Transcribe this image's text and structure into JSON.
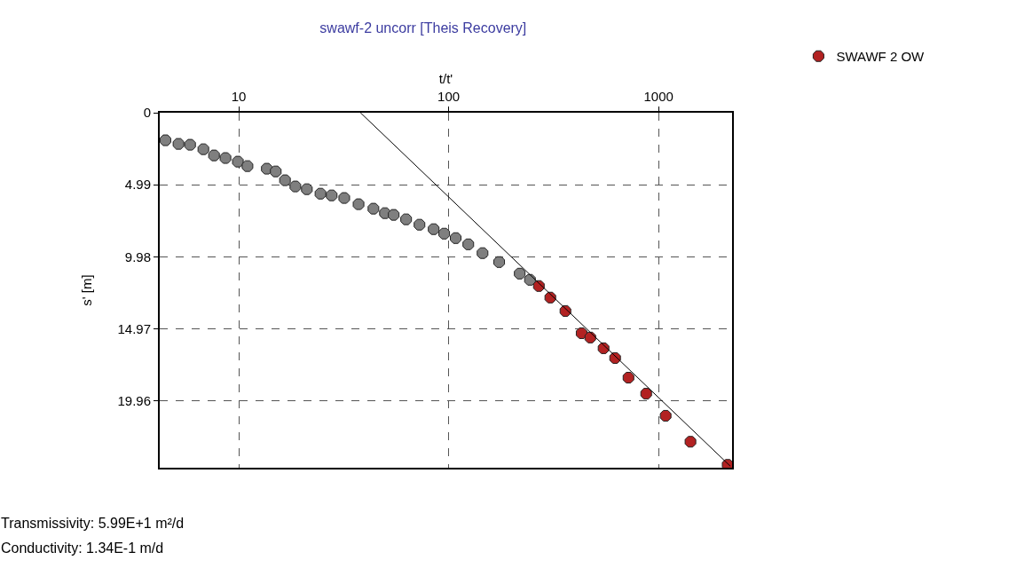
{
  "chart_data": {
    "type": "scatter",
    "title": "swawf-2 uncorr [Theis Recovery]",
    "xlabel": "t/t'",
    "ylabel": "s' [m]",
    "log": "x",
    "xlim": [
      4.2,
      2240
    ],
    "xticks": [
      10,
      100,
      1000
    ],
    "ylim": [
      24.6,
      0
    ],
    "yticks": [
      0,
      4.99,
      9.98,
      14.97,
      19.96
    ],
    "grid": true,
    "legend": "top right",
    "series": [
      {
        "color": "#7f7f7f",
        "marker": "circle",
        "x": [
          4.47,
          5.16,
          5.86,
          6.78,
          7.62,
          8.64,
          9.9,
          11.0,
          13.6,
          15.0,
          16.6,
          18.6,
          21.1,
          24.5,
          27.7,
          31.8,
          37.2,
          43.8,
          49.7,
          54.7,
          62.7,
          72.6,
          84.8,
          95.2,
          108,
          124,
          145,
          174,
          218,
          244
        ],
        "values": [
          1.91,
          2.16,
          2.22,
          2.53,
          2.96,
          3.14,
          3.39,
          3.7,
          3.88,
          4.07,
          4.68,
          5.11,
          5.3,
          5.61,
          5.73,
          5.91,
          6.34,
          6.65,
          6.96,
          7.08,
          7.39,
          7.76,
          8.07,
          8.38,
          8.69,
          9.12,
          9.73,
          10.35,
          11.15,
          11.58
        ]
      },
      {
        "name": "SWAWF 2 OW",
        "color": "#b22222",
        "marker": "circle",
        "x": [
          269,
          305,
          360,
          430,
          473,
          547,
          621,
          719,
          873,
          1081,
          1419,
          2134
        ],
        "values": [
          12.01,
          12.81,
          13.74,
          15.28,
          15.58,
          16.32,
          17.0,
          18.36,
          19.47,
          21.0,
          22.8,
          24.4
        ]
      },
      {
        "type": "line",
        "color": "#000000",
        "x": [
          38,
          2200
        ],
        "values": [
          0,
          24.5
        ]
      }
    ],
    "annotations": [
      "Transmissivity: 5.99E+1 m²/d",
      "Conductivity: 1.34E-1 m/d"
    ]
  }
}
